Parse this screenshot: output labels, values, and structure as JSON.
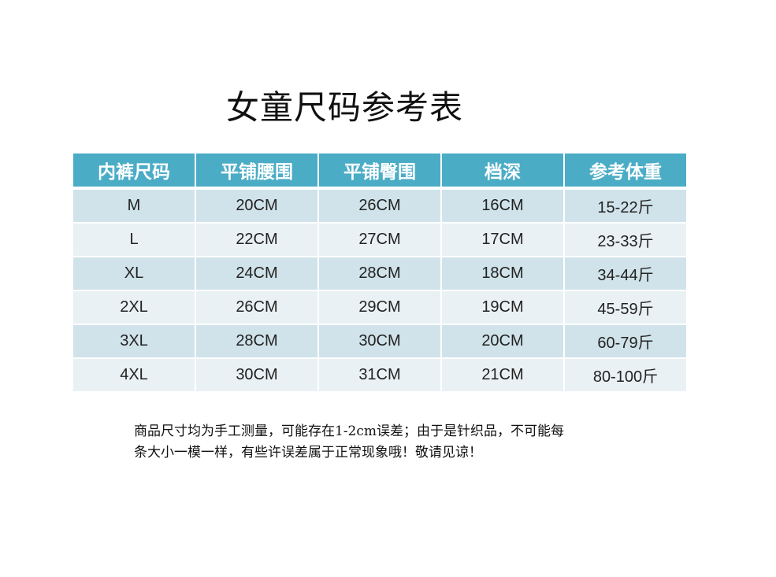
{
  "title": "女童尺码参考表",
  "table": {
    "headers": [
      "内裤尺码",
      "平铺腰围",
      "平铺臀围",
      "档深",
      "参考体重"
    ],
    "rows": [
      [
        "M",
        "20CM",
        "26CM",
        "16CM",
        "15-22斤"
      ],
      [
        "L",
        "22CM",
        "27CM",
        "17CM",
        "23-33斤"
      ],
      [
        "XL",
        "24CM",
        "28CM",
        "18CM",
        "34-44斤"
      ],
      [
        "2XL",
        "26CM",
        "29CM",
        "19CM",
        "45-59斤"
      ],
      [
        "3XL",
        "28CM",
        "30CM",
        "20CM",
        "60-79斤"
      ],
      [
        "4XL",
        "30CM",
        "31CM",
        "21CM",
        "80-100斤"
      ]
    ]
  },
  "note": {
    "line1": "商品尺寸均为手工测量，可能存在1-2cm误差；由于是针织品，不可能每",
    "line2": "条大小一模一样，有些许误差属于正常现象哦！敬请见谅！"
  },
  "colors": {
    "header": "#4bacc6",
    "row_odd": "#d0e3ea",
    "row_even": "#e9f1f4"
  }
}
